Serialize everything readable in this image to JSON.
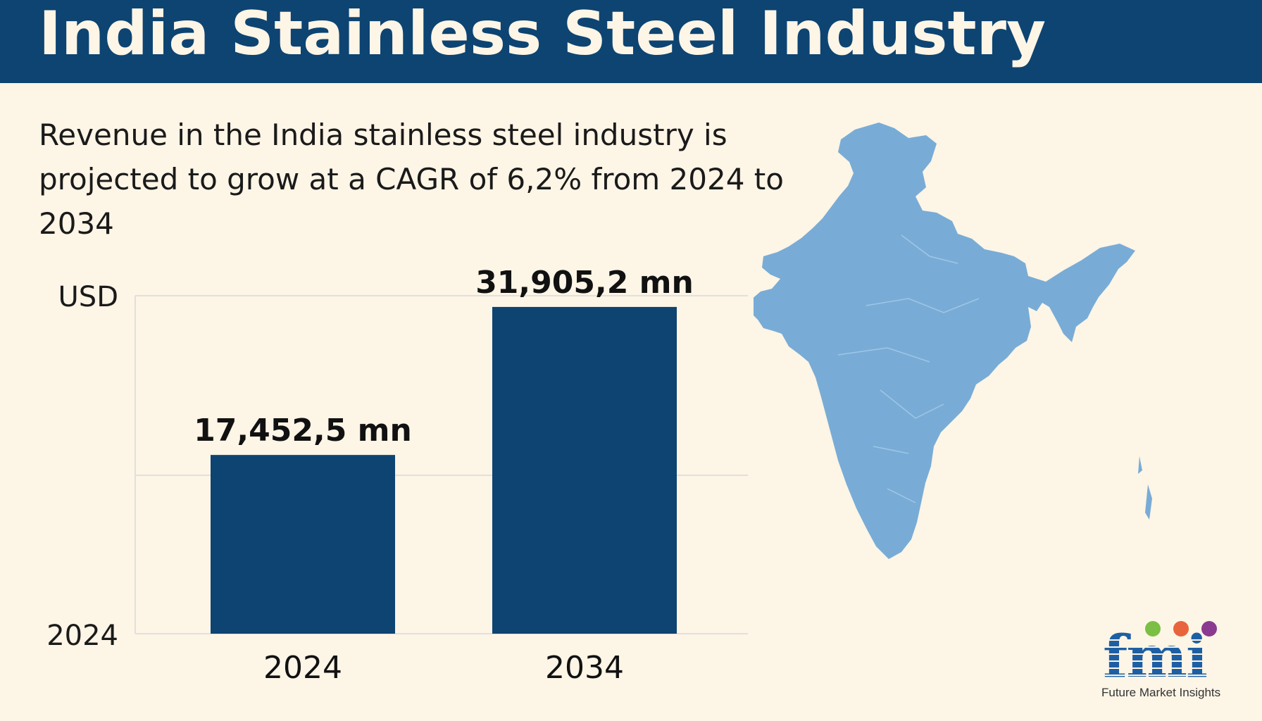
{
  "header": {
    "title": "India Stainless Steel Industry"
  },
  "description": "Revenue in the India stainless steel industry is projected to grow at a CAGR of 6,2% from 2024 to 2034",
  "colors": {
    "header_bg": "#0d4472",
    "bar": "#0d4472",
    "map": "#78acd6",
    "background": "#fdf5e6"
  },
  "chart_data": {
    "type": "bar",
    "title": "",
    "ylabel": "USD",
    "xlabel": "",
    "categories": [
      "2024",
      "2034"
    ],
    "values": [
      17452.5,
      31905.2
    ],
    "data_labels": [
      "17,452,5 mn",
      "31,905,2 mn"
    ],
    "y_axis_bottom_label": "2024",
    "ylim": [
      0,
      33000
    ],
    "grid": true
  },
  "map_icon": "india-map-icon",
  "logo": {
    "wordmark": "fmi",
    "caption": "Future Market Insights",
    "dot_colors": [
      "#7bbf45",
      "#e8643c",
      "#8a3b8f"
    ]
  }
}
